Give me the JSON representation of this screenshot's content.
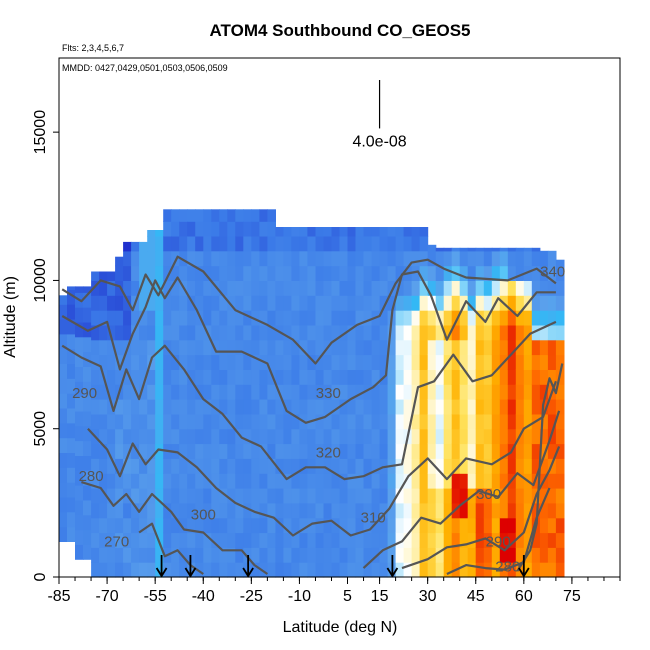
{
  "chart_data": {
    "type": "heatmap",
    "title": "ATOM4 Southbound CO_GEOS5",
    "subtitle_flights": "Flts: 2,3,4,5,6,7",
    "subtitle_dates": "MMDD: 0427,0429,0501,0503,0506,0509",
    "xlabel": "Latitude (deg N)",
    "ylabel": "Altitude (m)",
    "xlim": [
      -85,
      90
    ],
    "ylim": [
      0,
      17500
    ],
    "x_ticks": [
      -85,
      -70,
      -55,
      -40,
      -25,
      -10,
      5,
      15,
      30,
      45,
      60,
      75
    ],
    "y_ticks": [
      0,
      5000,
      10000,
      15000
    ],
    "scale_bar": {
      "label": "4.0e-08",
      "lat": 15,
      "alt_bottom": 15800,
      "alt_top": 17500
    },
    "colormap": [
      "#1a22c8",
      "#3b7be8",
      "#5aa0ec",
      "#33b8f5",
      "#ffffff",
      "#ffe25a",
      "#ffb000",
      "#ff6a00",
      "#dd0000"
    ],
    "contour_labels": [
      {
        "text": "340",
        "lat": 69,
        "alt": 10300
      },
      {
        "text": "330",
        "lat": -1,
        "alt": 6200
      },
      {
        "text": "320",
        "lat": -1,
        "alt": 4200
      },
      {
        "text": "310",
        "lat": 13,
        "alt": 2000
      },
      {
        "text": "300",
        "lat": -40,
        "alt": 2100
      },
      {
        "text": "300",
        "lat": 49,
        "alt": 2800
      },
      {
        "text": "290",
        "lat": 52,
        "alt": 1200
      },
      {
        "text": "280",
        "lat": 55,
        "alt": 350
      },
      {
        "text": "280",
        "lat": -75,
        "alt": 3400
      },
      {
        "text": "290",
        "lat": -77,
        "alt": 6200
      },
      {
        "text": "270",
        "lat": -67,
        "alt": 1200
      }
    ],
    "arrows_lat": [
      -53,
      -44,
      -26,
      19,
      60
    ]
  }
}
